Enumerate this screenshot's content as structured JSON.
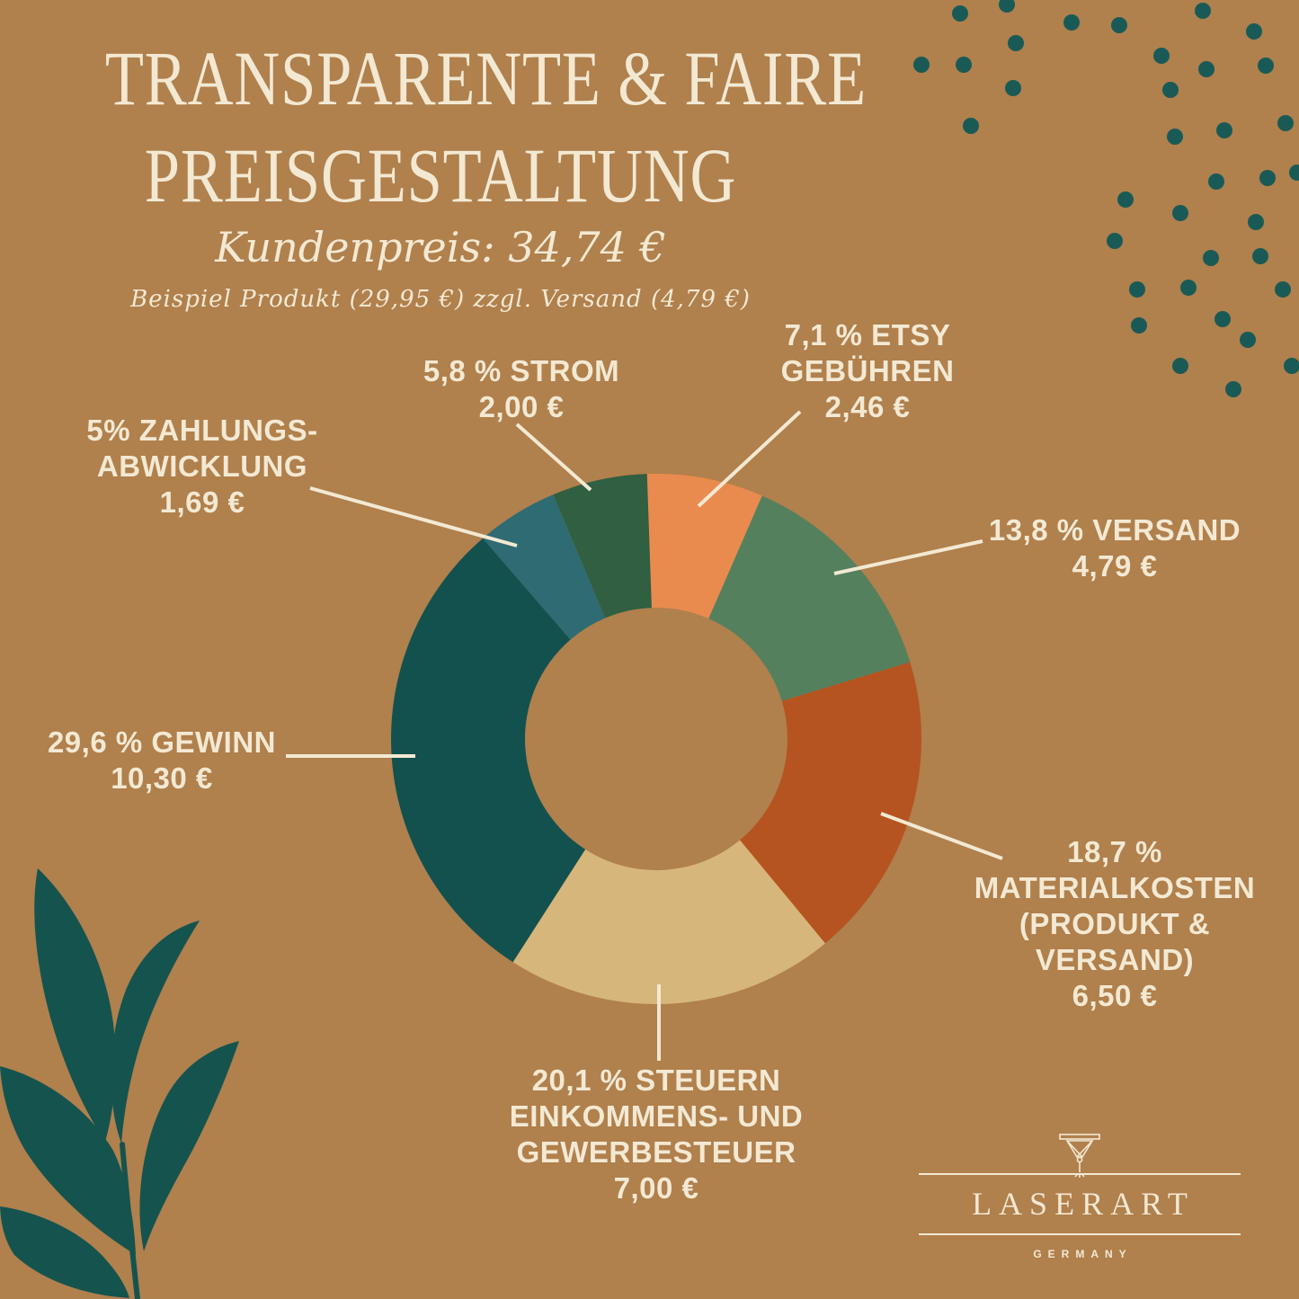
{
  "page": {
    "background_color": "#b0804d",
    "text_color": "#f3e9d3"
  },
  "title": {
    "line1": "TRANSPARENTE & FAIRE",
    "line2": "PREISGESTALTUNG"
  },
  "pricing": {
    "customer_price_line": "Kundenpreis:  34,74  €",
    "example_note": "Beispiel Produkt (29,95 €) zzgl. Versand (4,79 €)"
  },
  "chart_data": {
    "type": "pie",
    "variant": "donut",
    "title": "Transparente & faire Preisgestaltung",
    "subtitle": "Kundenpreis 34,74 €",
    "unit": "EUR",
    "total_eur": 34.74,
    "direction": "clockwise",
    "start_angle_deg": -2,
    "hole_ratio": 0.495,
    "legend": "callout-labels",
    "segments": [
      {
        "id": "etsy-fees",
        "percent": 7.1,
        "value_eur": 2.46,
        "color": "#e98b4e",
        "label_lines": [
          "7,1 % ETSY",
          "GEBÜHREN",
          "2,46 €"
        ]
      },
      {
        "id": "shipping",
        "percent": 13.8,
        "value_eur": 4.79,
        "color": "#54805e",
        "label_lines": [
          "13,8 % VERSAND",
          "4,79 €"
        ]
      },
      {
        "id": "material-costs",
        "percent": 18.7,
        "value_eur": 6.5,
        "color": "#b55420",
        "label_lines": [
          "18,7 %",
          "MATERIALKOSTEN",
          "(PRODUKT &",
          "VERSAND)",
          "6,50 €"
        ]
      },
      {
        "id": "taxes",
        "percent": 20.1,
        "value_eur": 7.0,
        "color": "#d7b67b",
        "label_lines": [
          "20,1 % STEUERN",
          "EINKOMMENS- UND",
          "GEWERBESTEUER",
          "7,00 €"
        ]
      },
      {
        "id": "profit",
        "percent": 29.6,
        "value_eur": 10.3,
        "color": "#13514f",
        "label_lines": [
          "29,6 % GEWINN",
          "10,30 €"
        ]
      },
      {
        "id": "payment-processing",
        "percent": 5.0,
        "value_eur": 1.69,
        "color": "#2e6b73",
        "label_lines": [
          "5% ZAHLUNGS-",
          "ABWICKLUNG",
          "1,69 €"
        ]
      },
      {
        "id": "electricity",
        "percent": 5.8,
        "value_eur": 2.0,
        "color": "#305f41",
        "label_lines": [
          "5,8 % STROM",
          "2,00 €"
        ]
      }
    ]
  },
  "logo": {
    "name": "LASERART",
    "country": "GERMANY",
    "icon": "laser-engraver-icon"
  },
  "decor": {
    "dots_color": "#1a5a56",
    "leaf_color": "#15534e",
    "callout_line_color": "#f3e9d3",
    "icons": [
      "dots-pattern",
      "leaf-illustration",
      "laser-engraver-icon"
    ]
  }
}
